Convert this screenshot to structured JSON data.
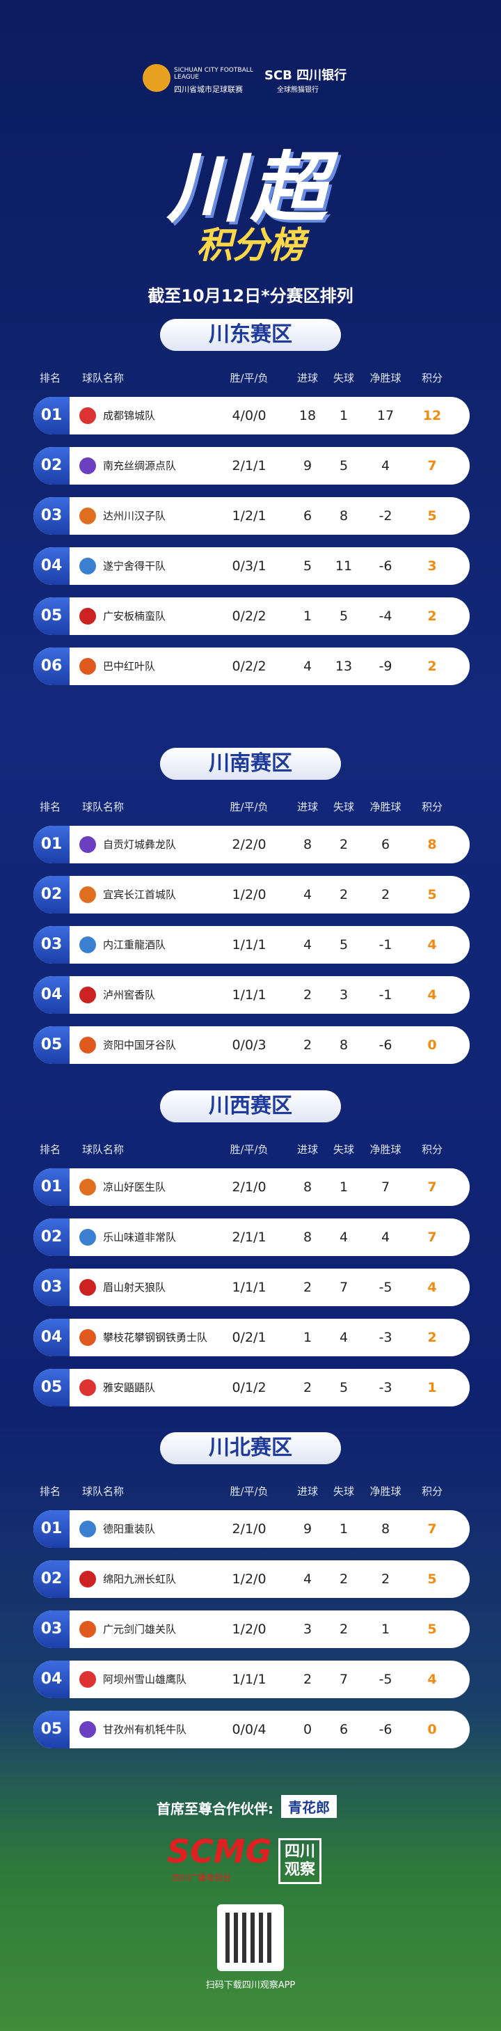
{
  "header": {
    "league_en": "SICHUAN CITY FOOTBALL LEAGUE",
    "league_cn": "四川省城市足球联赛",
    "sponsor": "SCB 四川银行",
    "sponsor_sub": "全球熊猫银行"
  },
  "title": "川超",
  "subtitle": "积分榜",
  "date_note": "截至10月12日*分赛区排列",
  "sections": [
    {
      "name": "川东赛区",
      "columns": [
        "排名",
        "球队名称",
        "胜/平/负",
        "进球",
        "失球",
        "净胜球",
        "积分"
      ],
      "rows": [
        [
          "01",
          "成都锦城队",
          "4/0/0",
          18,
          1,
          17,
          12
        ],
        [
          "02",
          "南充丝绸源点队",
          "2/1/1",
          9,
          5,
          4,
          7
        ],
        [
          "03",
          "达州川汉子队",
          "1/2/1",
          6,
          8,
          -2,
          5
        ],
        [
          "04",
          "遂宁舍得干队",
          "0/3/1",
          5,
          11,
          -6,
          3
        ],
        [
          "05",
          "广安板楠蛮队",
          "0/2/2",
          1,
          5,
          -4,
          2
        ],
        [
          "06",
          "巴中红叶队",
          "0/2/2",
          4,
          13,
          -9,
          2
        ]
      ]
    },
    {
      "name": "川南赛区",
      "columns": [
        "排名",
        "球队名称",
        "胜/平/负",
        "进球",
        "失球",
        "净胜球",
        "积分"
      ],
      "rows": [
        [
          "01",
          "自贡灯城彝龙队",
          "2/2/0",
          8,
          2,
          6,
          8
        ],
        [
          "02",
          "宜宾长江首城队",
          "1/2/0",
          4,
          2,
          2,
          5
        ],
        [
          "03",
          "内江重龍酒队",
          "1/1/1",
          4,
          5,
          -1,
          4
        ],
        [
          "04",
          "泸州窖香队",
          "1/1/1",
          2,
          3,
          -1,
          4
        ],
        [
          "05",
          "资阳中国牙谷队",
          "0/0/3",
          2,
          8,
          -6,
          0
        ]
      ]
    },
    {
      "name": "川西赛区",
      "columns": [
        "排名",
        "球队名称",
        "胜/平/负",
        "进球",
        "失球",
        "净胜球",
        "积分"
      ],
      "rows": [
        [
          "01",
          "凉山好医生队",
          "2/1/0",
          8,
          1,
          7,
          7
        ],
        [
          "02",
          "乐山味道非常队",
          "2/1/1",
          8,
          4,
          4,
          7
        ],
        [
          "03",
          "眉山射天狼队",
          "1/1/1",
          2,
          7,
          -5,
          4
        ],
        [
          "04",
          "攀枝花攀钢钢铁勇士队",
          "0/2/1",
          1,
          4,
          -3,
          2
        ],
        [
          "05",
          "雅安鼯鼯队",
          "0/1/2",
          2,
          5,
          -3,
          1
        ]
      ]
    },
    {
      "name": "川北赛区",
      "columns": [
        "排名",
        "球队名称",
        "胜/平/负",
        "进球",
        "失球",
        "净胜球",
        "积分"
      ],
      "rows": [
        [
          "01",
          "德阳重装队",
          "2/1/0",
          9,
          1,
          8,
          7
        ],
        [
          "02",
          "绵阳九洲长虹队",
          "1/2/0",
          4,
          2,
          2,
          5
        ],
        [
          "03",
          "广元剑门雄关队",
          "1/2/0",
          3,
          2,
          1,
          5
        ],
        [
          "04",
          "阿坝州雪山雄鹰队",
          "1/1/1",
          2,
          7,
          -5,
          4
        ],
        [
          "05",
          "甘孜州有机牦牛队",
          "0/0/4",
          0,
          6,
          -6,
          0
        ]
      ]
    }
  ],
  "footer": {
    "partner_label": "首席至尊合作伙伴:",
    "partner": "青花郎",
    "media": "SCMG",
    "media_cn": "四川广播电视台",
    "app": "四川观察",
    "qr_note": "扫码下载四川观察APP"
  }
}
